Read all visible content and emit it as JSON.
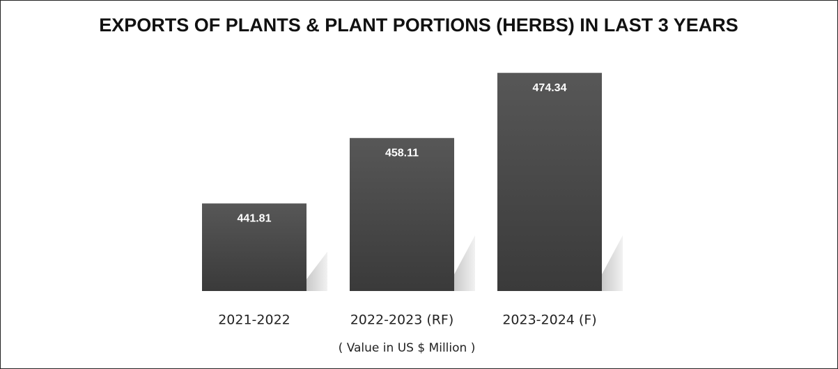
{
  "chart_data": {
    "type": "bar",
    "title": "EXPORTS OF PLANTS & PLANT PORTIONS (HERBS) IN LAST 3 YEARS",
    "categories": [
      "2021-2022",
      "2022-2023 (RF)",
      "2023-2024 (F)"
    ],
    "values": [
      441.81,
      458.11,
      474.34
    ],
    "color": "#474747",
    "xlabel": "( Value in US $ Million )",
    "ylim": [
      420,
      480
    ]
  }
}
